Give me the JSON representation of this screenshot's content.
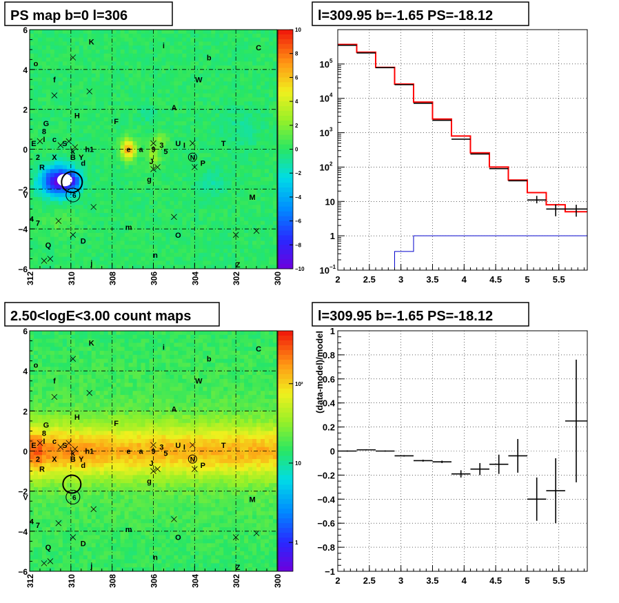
{
  "titles": {
    "tl": "PS map b=0 l=306",
    "tr": "l=309.95 b=-1.65 PS=-18.12",
    "bl": "2.50<logE<3.00 count maps",
    "br": "l=309.95 b=-1.65 PS=-18.12"
  },
  "maps": {
    "xticks": [
      "312",
      "310",
      "308",
      "306",
      "304",
      "302",
      "300"
    ],
    "yticks": [
      "6",
      "4",
      "2",
      "0",
      "−2",
      "−4",
      "−6"
    ],
    "top_palette_ticks": [
      "10",
      "8",
      "6",
      "4",
      "2",
      "0",
      "−2",
      "−4",
      "−6",
      "−8",
      "−10"
    ],
    "bottom_palette_ticks": [
      "10²",
      "10",
      "1"
    ],
    "sources": [
      {
        "t": "K",
        "l": 309.0,
        "b": 5.4
      },
      {
        "t": "i",
        "l": 305.5,
        "b": 5.2
      },
      {
        "t": "C",
        "l": 300.9,
        "b": 5.1
      },
      {
        "t": "o",
        "l": 311.7,
        "b": 4.3
      },
      {
        "t": "b",
        "l": 303.3,
        "b": 4.6
      },
      {
        "t": "W",
        "l": 303.8,
        "b": 3.5
      },
      {
        "t": "f",
        "l": 310.8,
        "b": 3.5
      },
      {
        "t": "A",
        "l": 305.0,
        "b": 2.1
      },
      {
        "t": "H",
        "l": 309.7,
        "b": 1.7
      },
      {
        "t": "F",
        "l": 307.8,
        "b": 1.4
      },
      {
        "t": "G",
        "l": 311.2,
        "b": 1.3
      },
      {
        "t": "8",
        "l": 311.3,
        "b": 0.9
      },
      {
        "t": "I",
        "l": 311.3,
        "b": 0.5
      },
      {
        "t": "c",
        "l": 310.8,
        "b": 0.5
      },
      {
        "t": "S",
        "l": 310.3,
        "b": 0.3
      },
      {
        "t": "E",
        "l": 311.8,
        "b": 0.3
      },
      {
        "t": "T",
        "l": 302.6,
        "b": 0.3
      },
      {
        "t": "U",
        "l": 304.8,
        "b": 0.3
      },
      {
        "t": "k",
        "l": 309.9,
        "b": -0.1
      },
      {
        "t": "h1",
        "l": 309.1,
        "b": 0.0
      },
      {
        "t": "e",
        "l": 307.2,
        "b": 0.0
      },
      {
        "t": "a",
        "l": 306.6,
        "b": 0.0
      },
      {
        "t": "9",
        "l": 306.0,
        "b": 0.0
      },
      {
        "t": "3",
        "l": 305.6,
        "b": 0.2
      },
      {
        "t": "5",
        "l": 305.4,
        "b": -0.1
      },
      {
        "t": "I",
        "l": 304.5,
        "b": 0.2
      },
      {
        "t": "2",
        "l": 311.6,
        "b": -0.4
      },
      {
        "t": "X",
        "l": 310.8,
        "b": -0.4
      },
      {
        "t": "B",
        "l": 309.9,
        "b": -0.4
      },
      {
        "t": "Y",
        "l": 309.5,
        "b": -0.4
      },
      {
        "t": "d",
        "l": 309.4,
        "b": -0.7
      },
      {
        "t": "J",
        "l": 306.1,
        "b": -0.6
      },
      {
        "t": "P",
        "l": 303.6,
        "b": -0.7
      },
      {
        "t": "R",
        "l": 311.4,
        "b": -0.9
      },
      {
        "t": "g",
        "l": 306.2,
        "b": -1.5
      },
      {
        "t": "V",
        "l": 312.2,
        "b": -2.3
      },
      {
        "t": "M",
        "l": 301.2,
        "b": -2.4
      },
      {
        "t": "4",
        "l": 311.9,
        "b": -3.5
      },
      {
        "t": "7",
        "l": 311.6,
        "b": -3.7
      },
      {
        "t": "m",
        "l": 307.2,
        "b": -3.9
      },
      {
        "t": "O",
        "l": 304.8,
        "b": -4.3
      },
      {
        "t": "D",
        "l": 309.4,
        "b": -4.6
      },
      {
        "t": "Q",
        "l": 311.1,
        "b": -4.8
      },
      {
        "t": "n",
        "l": 305.9,
        "b": -5.3
      },
      {
        "t": "j",
        "l": 309.0,
        "b": -5.7
      },
      {
        "t": "Z",
        "l": 301.9,
        "b": -5.8
      }
    ],
    "circled_N": {
      "l": 304.1,
      "b": -0.4
    },
    "circled_6": {
      "l": 309.9,
      "b": -2.3
    }
  },
  "chart_data": [
    {
      "type": "line",
      "panel": "spectrum",
      "title": "l=309.95 b=-1.65 PS=-18.12",
      "xlabel": "",
      "ylabel": "",
      "xlim": [
        2,
        5.95
      ],
      "ylim": [
        0.1,
        1000000
      ],
      "yscale": "log",
      "grid": true,
      "xticks": [
        2,
        2.5,
        3,
        3.5,
        4,
        4.5,
        5,
        5.5
      ],
      "bin_edges": [
        2.0,
        2.3,
        2.6,
        2.9,
        3.2,
        3.5,
        3.8,
        4.1,
        4.4,
        4.7,
        5.0,
        5.3,
        5.6,
        5.95
      ],
      "series": [
        {
          "color": "#ff0000",
          "values": [
            370000,
            220000,
            80000,
            26000,
            7800,
            2500,
            800,
            260,
            100,
            42,
            18,
            8,
            5
          ]
        },
        {
          "color": "#0000cc",
          "values": [
            0.1,
            0.1,
            0.1,
            0.35,
            1,
            1,
            1,
            1,
            1,
            1,
            1,
            1,
            1
          ]
        },
        {
          "color": "#000000",
          "style": "errorbars",
          "values": [
            350000,
            210000,
            78000,
            25000,
            7200,
            2300,
            650,
            240,
            90,
            40,
            11,
            6,
            6
          ],
          "err_low": [
            0,
            0,
            0,
            0,
            0,
            0,
            0,
            0,
            0,
            0,
            2.2,
            2.3,
            2.4
          ],
          "err_high": [
            0,
            0,
            0,
            0,
            0,
            0,
            0,
            0,
            0,
            0,
            3.5,
            2.2,
            2
          ]
        }
      ]
    },
    {
      "type": "scatter",
      "panel": "residual",
      "title": "l=309.95 b=-1.65 PS=-18.12",
      "xlabel": "",
      "ylabel": "(data-model)/model",
      "xlim": [
        2,
        5.95
      ],
      "ylim": [
        -1,
        1
      ],
      "grid": true,
      "xticks": [
        2,
        2.5,
        3,
        3.5,
        4,
        4.5,
        5,
        5.5
      ],
      "yticks": [
        -1,
        -0.8,
        -0.6,
        -0.4,
        -0.2,
        0,
        0.2,
        0.4,
        0.6,
        0.8,
        1
      ],
      "bin_edges": [
        2.0,
        2.3,
        2.6,
        2.9,
        3.2,
        3.5,
        3.8,
        4.1,
        4.4,
        4.7,
        5.0,
        5.3,
        5.6,
        5.95
      ],
      "values": [
        0.0,
        0.01,
        0.0,
        -0.04,
        -0.08,
        -0.09,
        -0.19,
        -0.15,
        -0.11,
        -0.04,
        -0.4,
        -0.33,
        0.25
      ],
      "err": [
        0.005,
        0.005,
        0.005,
        0.006,
        0.008,
        0.01,
        0.03,
        0.05,
        0.08,
        0.14,
        0.18,
        0.27,
        0.51
      ]
    }
  ]
}
